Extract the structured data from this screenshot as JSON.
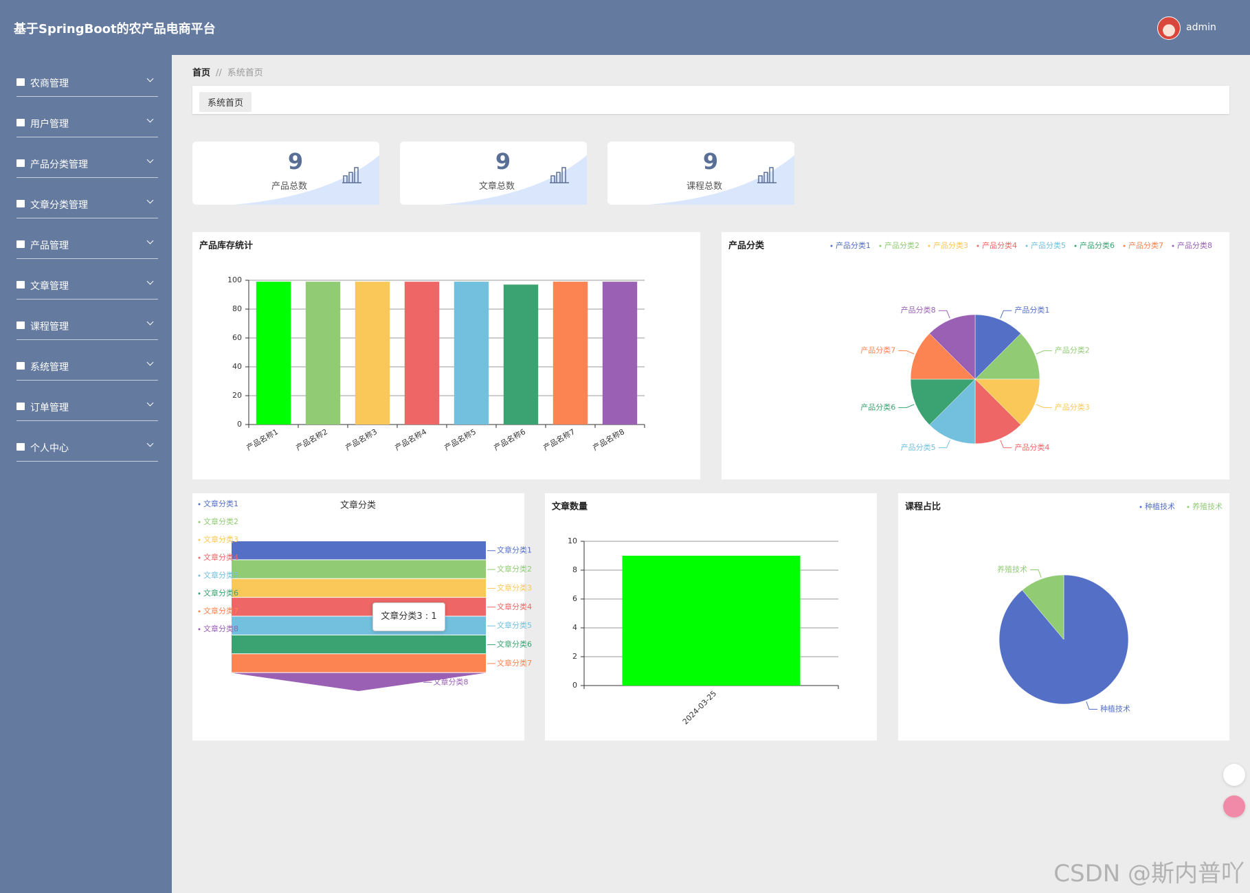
{
  "header": {
    "title": "基于SpringBoot的农产品电商平台",
    "user": "admin"
  },
  "sidebar": {
    "items": [
      "农商管理",
      "用户管理",
      "产品分类管理",
      "文章分类管理",
      "产品管理",
      "文章管理",
      "课程管理",
      "系统管理",
      "订单管理",
      "个人中心"
    ]
  },
  "breadcrumb": {
    "home": "首页",
    "separator": "//",
    "current": "系统首页"
  },
  "tab": "系统首页",
  "stats": [
    {
      "value": 9,
      "label": "产品总数"
    },
    {
      "value": 9,
      "label": "文章总数"
    },
    {
      "value": 9,
      "label": "课程总数"
    }
  ],
  "chart_data": [
    {
      "type": "bar",
      "title": "产品库存统计",
      "categories": [
        "产品名称1",
        "产品名称2",
        "产品名称3",
        "产品名称4",
        "产品名称5",
        "产品名称6",
        "产品名称7",
        "产品名称8"
      ],
      "values": [
        99,
        99,
        99,
        99,
        99,
        97,
        99,
        99
      ],
      "colors": [
        "#00ff00",
        "#91cc75",
        "#fac858",
        "#ee6666",
        "#73c0de",
        "#3ba272",
        "#fc8452",
        "#9a60b4"
      ],
      "ylim": [
        0,
        100
      ],
      "yticks": [
        0,
        20,
        40,
        60,
        80,
        100
      ],
      "grid": true
    },
    {
      "type": "pie",
      "title": "产品分类",
      "categories": [
        "产品分类1",
        "产品分类2",
        "产品分类3",
        "产品分类4",
        "产品分类5",
        "产品分类6",
        "产品分类7",
        "产品分类8"
      ],
      "values": [
        1,
        1,
        1,
        1,
        1,
        1,
        1,
        1
      ],
      "colors": [
        "#5470c6",
        "#91cc75",
        "#fac858",
        "#ee6666",
        "#73c0de",
        "#3ba272",
        "#fc8452",
        "#9a60b4"
      ],
      "legend": "top-right"
    },
    {
      "type": "funnel",
      "title": "文章分类",
      "categories": [
        "文章分类1",
        "文章分类2",
        "文章分类3",
        "文章分类4",
        "文章分类5",
        "文章分类6",
        "文章分类7",
        "文章分类8"
      ],
      "values": [
        1,
        1,
        1,
        1,
        1,
        1,
        1,
        1
      ],
      "colors": [
        "#5470c6",
        "#91cc75",
        "#fac858",
        "#ee6666",
        "#73c0de",
        "#3ba272",
        "#fc8452",
        "#9a60b4"
      ],
      "legend": "left",
      "tooltip": "文章分类3 : 1"
    },
    {
      "type": "bar",
      "title": "文章数量",
      "categories": [
        "2024-03-25"
      ],
      "values": [
        9
      ],
      "colors": [
        "#00ff00"
      ],
      "ylim": [
        0,
        10
      ],
      "yticks": [
        0,
        2,
        4,
        6,
        8,
        10
      ],
      "grid": true
    },
    {
      "type": "pie",
      "title": "课程占比",
      "categories": [
        "种植技术",
        "养殖技术"
      ],
      "values": [
        8,
        1
      ],
      "colors": [
        "#5470c6",
        "#91cc75"
      ],
      "legend": "top-right"
    }
  ],
  "watermark": "CSDN @斯内普吖"
}
